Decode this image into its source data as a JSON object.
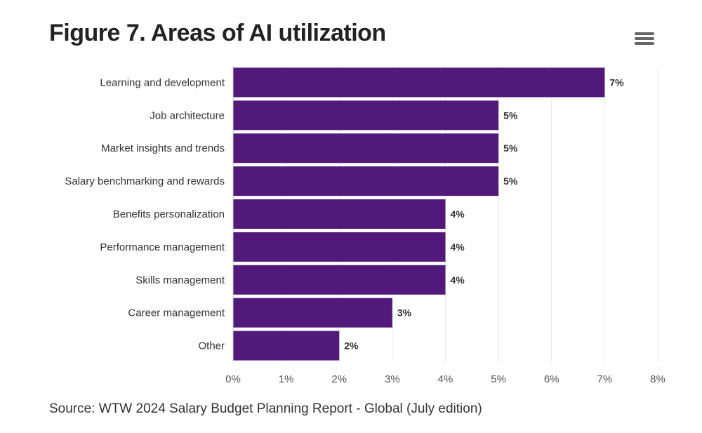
{
  "chart_data": {
    "type": "bar",
    "orientation": "horizontal",
    "title": "Figure 7. Areas of AI utilization",
    "categories": [
      "Learning and development",
      "Job architecture",
      "Market insights and trends",
      "Salary benchmarking and rewards",
      "Benefits personalization",
      "Performance management",
      "Skills management",
      "Career management",
      "Other"
    ],
    "values": [
      7,
      5,
      5,
      5,
      4,
      4,
      4,
      3,
      2
    ],
    "data_labels": [
      "7%",
      "5%",
      "5%",
      "5%",
      "4%",
      "4%",
      "4%",
      "3%",
      "2%"
    ],
    "xlim": [
      0,
      8
    ],
    "x_ticks": [
      0,
      1,
      2,
      3,
      4,
      5,
      6,
      7,
      8
    ],
    "x_tick_labels": [
      "0%",
      "1%",
      "2%",
      "3%",
      "4%",
      "5%",
      "6%",
      "7%",
      "8%"
    ],
    "xlabel": "",
    "ylabel": "",
    "grid": true,
    "bar_color": "#511a7a",
    "source": "Source: WTW 2024 Salary Budget Planning Report - Global (July edition)"
  },
  "menu": {
    "icon": "hamburger-menu-icon"
  }
}
